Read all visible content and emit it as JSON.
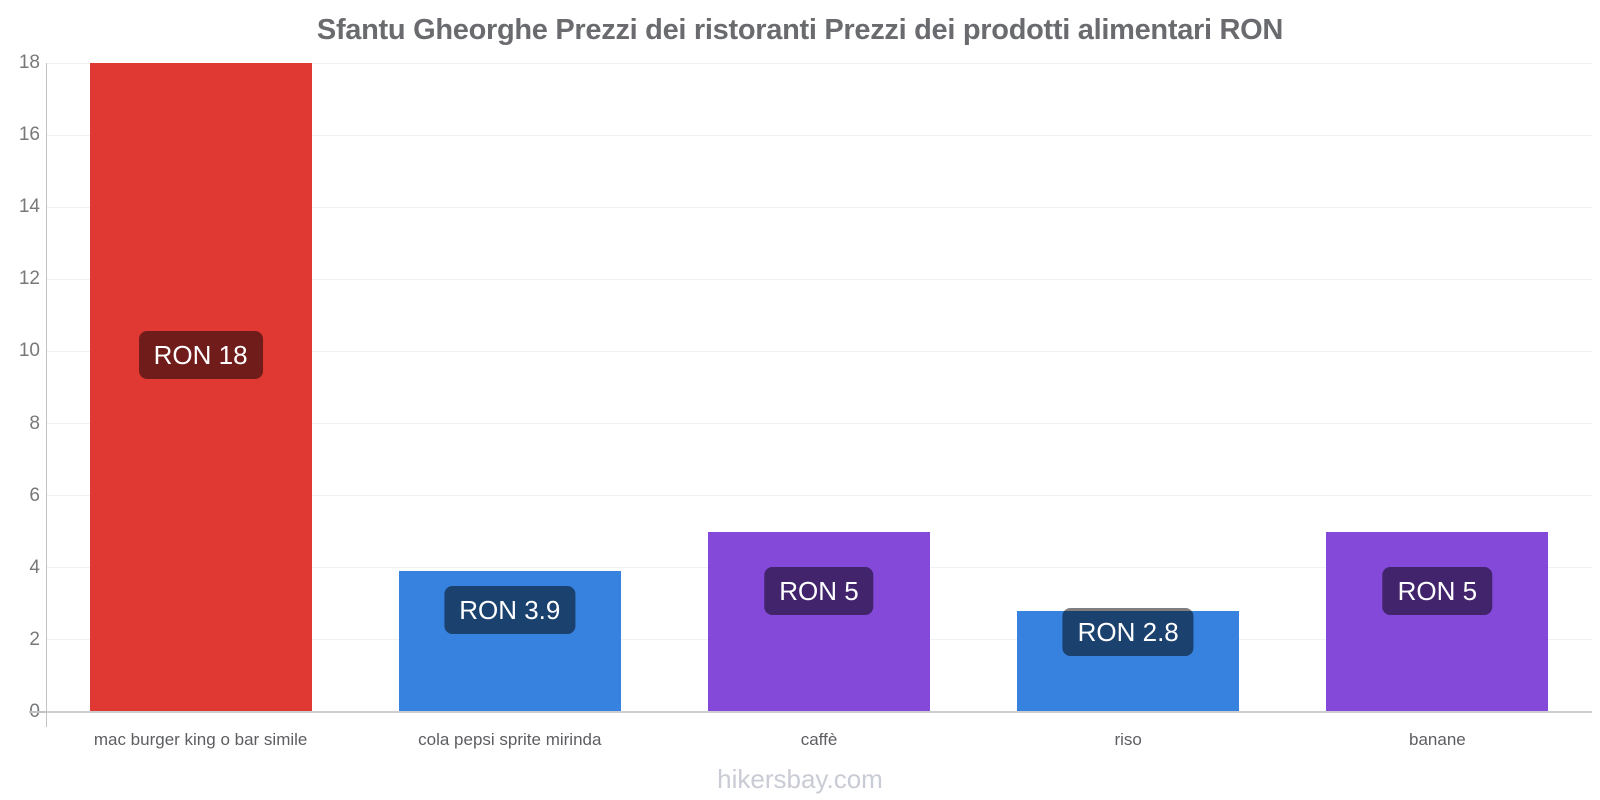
{
  "chart_data": {
    "type": "bar",
    "title": "Sfantu Gheorghe Prezzi dei ristoranti Prezzi dei prodotti alimentari RON",
    "categories": [
      "mac burger king o bar simile",
      "cola pepsi sprite mirinda",
      "caffè",
      "riso",
      "banane"
    ],
    "values": [
      18,
      3.9,
      5,
      2.8,
      5
    ],
    "value_labels": [
      "RON 18",
      "RON 3.9",
      "RON 5",
      "RON 2.8",
      "RON 5"
    ],
    "currency": "RON",
    "bar_colors": [
      "#e03934",
      "#3682de",
      "#8449d8",
      "#3682de",
      "#8449d8"
    ],
    "yticks": [
      0,
      2,
      4,
      6,
      8,
      10,
      12,
      14,
      16,
      18
    ],
    "ylim": [
      0,
      18
    ],
    "grid": true,
    "legend": false,
    "xlabel": "",
    "ylabel": ""
  },
  "footer": {
    "text": "hikersbay.com"
  },
  "colors": {
    "red_bar": "#e03934",
    "blue_bar": "#3682de",
    "purple_bar": "#8449d8",
    "value_label_overlay": "rgba(0,0,0,0.5)",
    "title_text": "#6a6b6f",
    "axis_tick_text": "#77787a",
    "category_text": "#5d5e62",
    "footer_text": "#c9cbd5",
    "gridline": "#f0f1f3",
    "axis_line_vertical": "#c0c3c6",
    "axis_line_horizontal": "#ccced1"
  }
}
